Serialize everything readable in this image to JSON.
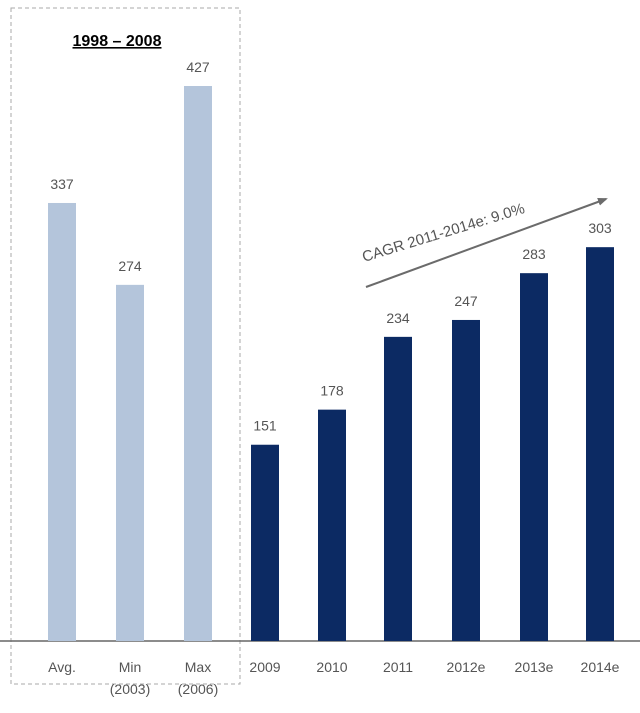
{
  "chart_data": {
    "type": "bar",
    "title": "1998 – 2008",
    "ylim": [
      0,
      427
    ],
    "categories": [
      "Avg.",
      "Min (2003)",
      "Max (2006)",
      "2009",
      "2010",
      "2011",
      "2012e",
      "2013e",
      "2014e"
    ],
    "category_lines": [
      [
        "Avg."
      ],
      [
        "Min",
        "(2003)"
      ],
      [
        "Max",
        "(2006)"
      ],
      [
        "2009"
      ],
      [
        "2010"
      ],
      [
        "2011"
      ],
      [
        "2012e"
      ],
      [
        "2013e"
      ],
      [
        "2014e"
      ]
    ],
    "values": [
      337,
      274,
      427,
      151,
      178,
      234,
      247,
      283,
      303
    ],
    "value_labels": [
      "337",
      "274",
      "427",
      "151",
      "178",
      "234",
      "247",
      "283",
      "303"
    ],
    "groups": [
      {
        "range": [
          0,
          2
        ],
        "color": "#b4c5db",
        "label": "1998 – 2008"
      },
      {
        "range": [
          3,
          8
        ],
        "color": "#0c2a63"
      }
    ],
    "annotation": {
      "text": "CAGR 2011-2014e: 9.0%",
      "arrow_color": "#6b6b6b"
    },
    "axis_color": "#666666"
  }
}
